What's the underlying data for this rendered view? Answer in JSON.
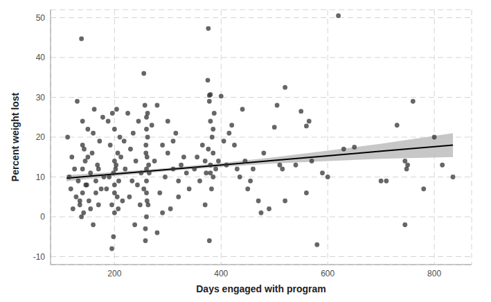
{
  "chart_data": {
    "type": "scatter",
    "x_label": "Days engaged with program",
    "y_label": "Percent weight lost",
    "xlim": [
      80,
      870
    ],
    "ylim": [
      -12,
      52
    ],
    "xticks": [
      200,
      400,
      600,
      800
    ],
    "yticks": [
      -10,
      0,
      10,
      20,
      30,
      40,
      50
    ],
    "grid": true,
    "marker": "circle",
    "color": "#333333",
    "x": [
      112,
      115,
      118,
      120,
      122,
      125,
      128,
      130,
      132,
      135,
      138,
      140,
      140,
      140,
      142,
      145,
      148,
      150,
      152,
      155,
      158,
      160,
      162,
      165,
      168,
      170,
      172,
      175,
      178,
      180,
      135,
      138,
      140,
      143,
      146,
      150,
      155,
      160,
      165,
      170,
      190,
      192,
      195,
      196,
      198,
      200,
      200,
      200,
      200,
      202,
      204,
      205,
      206,
      208,
      210,
      195,
      198,
      200,
      203,
      207,
      185,
      188,
      212,
      215,
      218,
      220,
      225,
      228,
      230,
      233,
      235,
      238,
      240,
      243,
      245,
      248,
      250,
      255,
      257,
      258,
      259,
      260,
      260,
      260,
      260,
      261,
      262,
      263,
      265,
      258,
      260,
      262,
      255,
      264,
      260,
      259,
      261,
      270,
      275,
      280,
      285,
      290,
      295,
      300,
      305,
      310,
      315,
      320,
      325,
      330,
      335,
      340,
      280,
      300,
      320,
      290,
      310,
      350,
      355,
      360,
      365,
      370,
      372,
      375,
      376,
      378,
      378,
      380,
      380,
      380,
      382,
      383,
      385,
      385,
      387,
      390,
      395,
      378,
      380,
      370,
      385,
      376,
      400,
      405,
      410,
      420,
      425,
      430,
      440,
      445,
      450,
      460,
      470,
      480,
      490,
      500,
      505,
      510,
      415,
      435,
      455,
      475,
      515,
      520,
      540,
      550,
      560,
      560,
      565,
      570,
      580,
      590,
      600,
      520,
      620,
      630,
      650,
      700,
      710,
      730,
      750,
      745,
      760,
      780,
      800,
      815,
      835,
      745,
      748
    ],
    "values": [
      20,
      10,
      7,
      15,
      2,
      12,
      5,
      29,
      9,
      3,
      44.7,
      12,
      6,
      18,
      1,
      14,
      8,
      22,
      4,
      11,
      16,
      -2,
      27,
      9,
      13,
      3,
      19,
      7,
      25,
      10,
      4,
      0,
      24,
      17,
      8,
      15,
      2,
      21,
      6,
      12,
      10,
      18,
      3,
      26,
      -5,
      14,
      8,
      22,
      1,
      12,
      27,
      5,
      16,
      9,
      20,
      -8,
      11,
      6,
      13,
      2,
      7,
      24,
      15,
      4,
      19,
      12,
      26,
      5,
      17,
      9,
      21,
      -2,
      14,
      8,
      24,
      3,
      11,
      36,
      28,
      -6,
      18,
      12,
      22,
      6,
      9,
      15,
      26,
      3,
      11,
      -3,
      0,
      20,
      7,
      13,
      25,
      16,
      4,
      23,
      14,
      28,
      6,
      18,
      10,
      16,
      2,
      12,
      21,
      9,
      13,
      15,
      11,
      7,
      -4,
      24,
      5,
      1,
      19,
      12,
      15,
      9,
      18,
      14,
      11,
      34.3,
      47.3,
      30.5,
      -6,
      30.7,
      24,
      13,
      7,
      20,
      16,
      10,
      26,
      12,
      14,
      29,
      11,
      3,
      22,
      17,
      30.3,
      19,
      13,
      23,
      18,
      12,
      27,
      14,
      7,
      12,
      4,
      16,
      2,
      22.5,
      28,
      13,
      21,
      10,
      9,
      1,
      12,
      4,
      13,
      26.5,
      22.8,
      6,
      24,
      14,
      -7,
      11,
      10,
      32.5,
      50.5,
      17,
      17.5,
      9,
      9,
      23,
      13,
      -2,
      29,
      7,
      20,
      13,
      10,
      14,
      12
    ],
    "fit": {
      "x": [
        110,
        200,
        300,
        400,
        500,
        600,
        700,
        835
      ],
      "y": [
        9.7,
        10.73,
        11.88,
        13.02,
        14.17,
        15.31,
        16.46,
        18.0
      ],
      "lower": [
        8.9,
        10.23,
        11.48,
        12.52,
        13.37,
        14.01,
        14.56,
        15.0
      ],
      "upper": [
        10.5,
        11.23,
        12.28,
        13.52,
        14.97,
        16.61,
        18.36,
        21.0
      ],
      "color": "#000000",
      "band_color": "#bdbdbd"
    }
  }
}
